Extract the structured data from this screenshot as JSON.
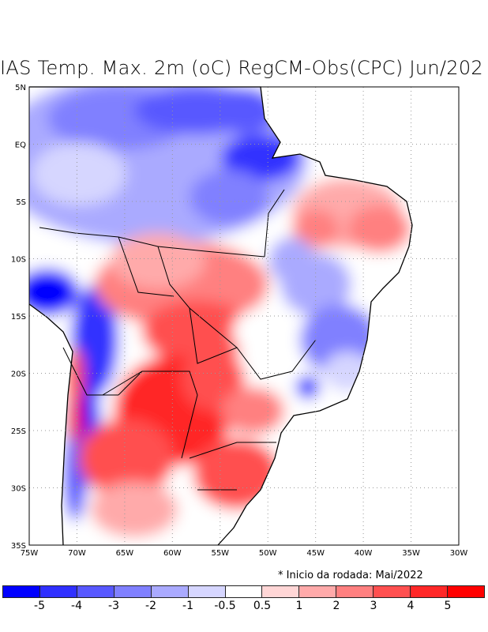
{
  "title": "IAS Temp. Max. 2m (oC) RegCM-Obs(CPC) Jun/202",
  "lat_labels": [
    "5N",
    "EQ",
    "5S",
    "10S",
    "15S",
    "20S",
    "25S",
    "30S",
    "35S"
  ],
  "lon_labels": [
    "75W",
    "70W",
    "65W",
    "60W",
    "55W",
    "50W",
    "45W",
    "40W",
    "35W",
    "30W"
  ],
  "note": "* Inicio da rodada: Mai/2022",
  "colorbar": {
    "colors": [
      "#0000ff",
      "#3030ff",
      "#5858ff",
      "#8080ff",
      "#aaaaff",
      "#d6d6ff",
      "#ffffff",
      "#ffd6d6",
      "#ffaaaa",
      "#ff8080",
      "#ff5050",
      "#ff2828",
      "#ff0000"
    ],
    "labels": [
      "-5",
      "-4",
      "-3",
      "-2",
      "-1",
      "-0.5",
      "0.5",
      "1",
      "2",
      "3",
      "4",
      "5"
    ]
  }
}
